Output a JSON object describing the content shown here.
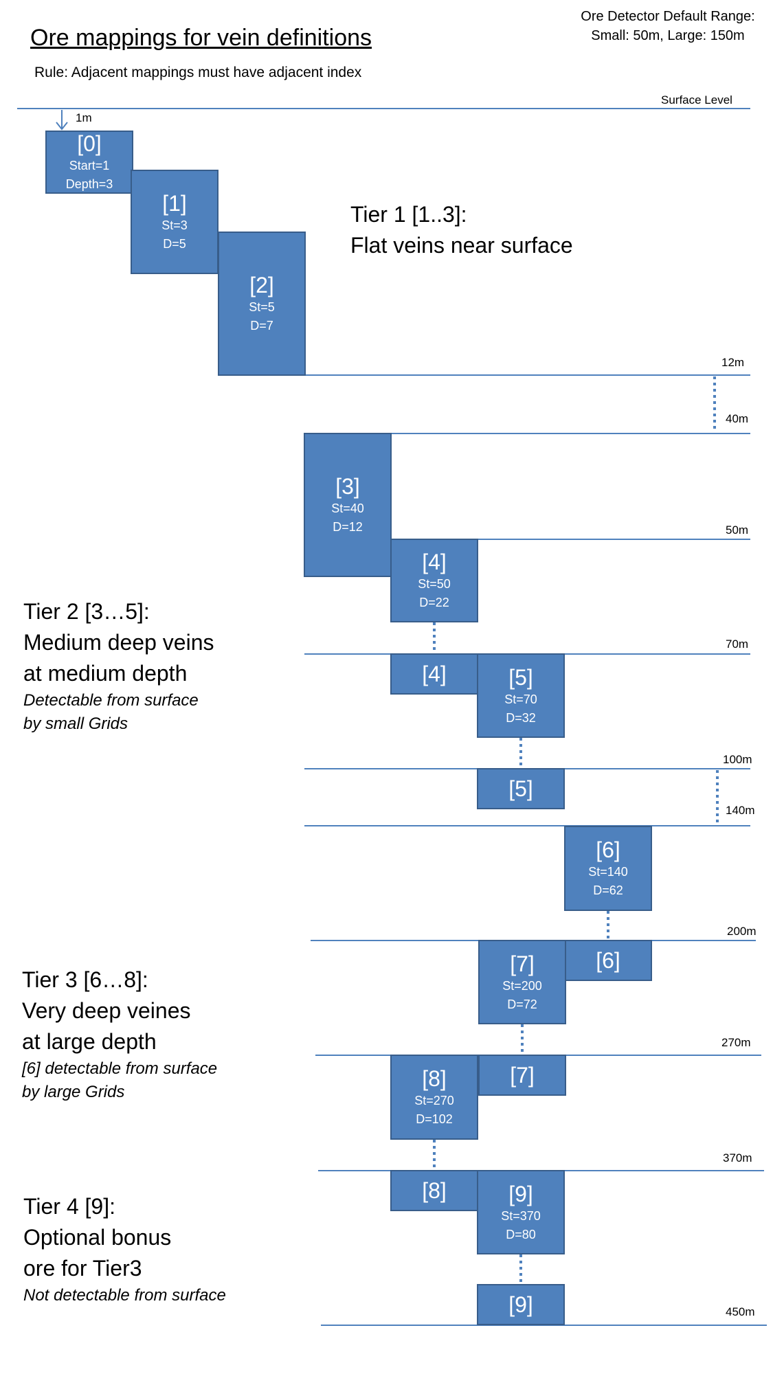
{
  "title": "Ore mappings for vein definitions",
  "rule": "Rule: Adjacent mappings must have adjacent index",
  "detector_range": {
    "line1": "Ore Detector Default Range:",
    "line2": "Small: 50m, Large: 150m"
  },
  "surface_label": "Surface Level",
  "depth_labels": [
    "1m",
    "12m",
    "40m",
    "50m",
    "70m",
    "100m",
    "140m",
    "200m",
    "270m",
    "370m",
    "450m"
  ],
  "mappings": [
    {
      "index": "[0]",
      "start": "Start=1",
      "depth": "Depth=3"
    },
    {
      "index": "[1]",
      "start": "St=3",
      "depth": "D=5"
    },
    {
      "index": "[2]",
      "start": "St=5",
      "depth": "D=7"
    },
    {
      "index": "[3]",
      "start": "St=40",
      "depth": "D=12"
    },
    {
      "index": "[4]",
      "start": "St=50",
      "depth": "D=22"
    },
    {
      "index": "[5]",
      "start": "St=70",
      "depth": "D=32"
    },
    {
      "index": "[6]",
      "start": "St=140",
      "depth": "D=62"
    },
    {
      "index": "[7]",
      "start": "St=200",
      "depth": "D=72"
    },
    {
      "index": "[8]",
      "start": "St=270",
      "depth": "D=102"
    },
    {
      "index": "[9]",
      "start": "St=370",
      "depth": "D=80"
    }
  ],
  "continuations": [
    "[4]",
    "[5]",
    "[6]",
    "[7]",
    "[8]",
    "[9]"
  ],
  "tiers": [
    {
      "line1": "Tier 1 [1..3]:",
      "line2": "Flat veins near surface"
    },
    {
      "line1": "Tier 2 [3…5]:",
      "line2": "Medium deep veins",
      "line3": "at medium depth",
      "note1": "Detectable from surface",
      "note2": "by small Grids"
    },
    {
      "line1": "Tier 3 [6…8]:",
      "line2": "Very deep veines",
      "line3": "at large depth",
      "note1": "[6] detectable from surface",
      "note2": "by large Grids"
    },
    {
      "line1": "Tier 4 [9]:",
      "line2": "Optional bonus",
      "line3": "ore for Tier3",
      "note1": "Not detectable from surface"
    }
  ],
  "colors": {
    "box_fill": "#4f81bd",
    "box_border": "#385d8a",
    "line": "#4f81bd"
  }
}
